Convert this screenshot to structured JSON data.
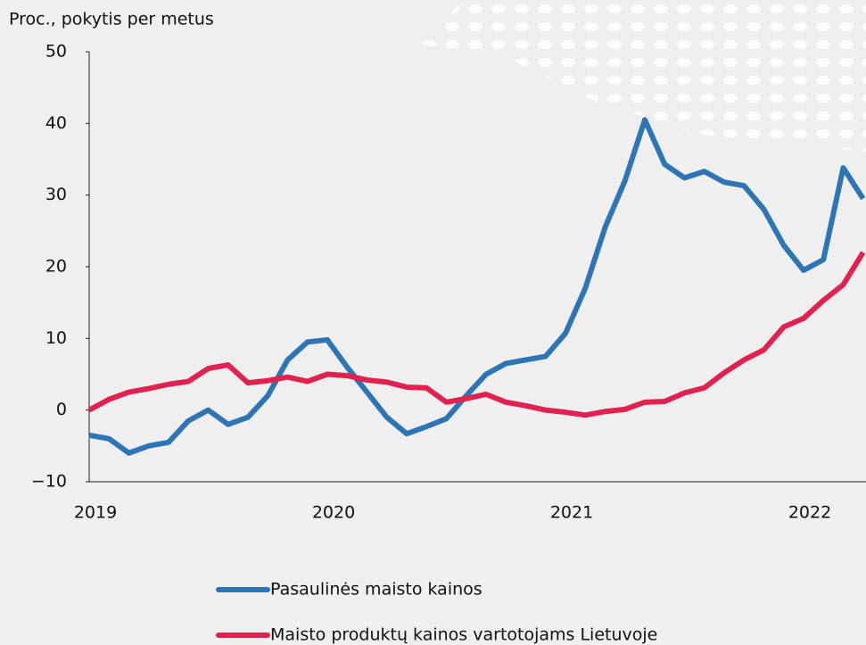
{
  "chart_data": {
    "type": "line",
    "y_label": "Proc., pokytis per metus",
    "categories": [
      "2019",
      null,
      null,
      null,
      null,
      null,
      null,
      null,
      null,
      null,
      null,
      null,
      "2020",
      null,
      null,
      null,
      null,
      null,
      null,
      null,
      null,
      null,
      null,
      null,
      "2021",
      null,
      null,
      null,
      null,
      null,
      null,
      null,
      null,
      null,
      null,
      null,
      "2022",
      null,
      null,
      null
    ],
    "series": [
      {
        "name": "Pasaulinės maisto kainos",
        "color": "#2e75b6",
        "values": [
          -3.5,
          -4,
          -6,
          -5,
          -4.5,
          -1.5,
          0,
          -2,
          -1,
          2,
          7,
          9.5,
          9.8,
          6,
          2.5,
          -1,
          -3.3,
          -2.3,
          -1.2,
          2,
          5,
          6.5,
          7,
          7.5,
          10.7,
          17,
          25.5,
          32,
          40.5,
          34.3,
          32.4,
          33.3,
          31.8,
          31.3,
          28,
          23,
          19.5,
          21,
          33.8,
          29.5
        ]
      },
      {
        "name": "Maisto produktų kainos vartotojams Lietuvoje",
        "color": "#e0234e",
        "values": [
          0,
          1.5,
          2.5,
          3,
          3.6,
          4,
          5.8,
          6.3,
          3.8,
          4.1,
          4.6,
          4,
          5,
          4.8,
          4.2,
          3.9,
          3.2,
          3.1,
          1.1,
          1.6,
          2.2,
          1.1,
          0.6,
          0,
          -0.3,
          -0.7,
          -0.2,
          0.1,
          1.1,
          1.2,
          2.4,
          3.1,
          5.2,
          7,
          8.4,
          11.6,
          12.8,
          15.3,
          17.5,
          22
        ]
      }
    ],
    "ylim": [
      -10,
      50
    ],
    "yticks": [
      {
        "value": -10,
        "label": "−10"
      },
      0,
      10,
      20,
      30,
      40,
      50
    ],
    "grid": false
  }
}
